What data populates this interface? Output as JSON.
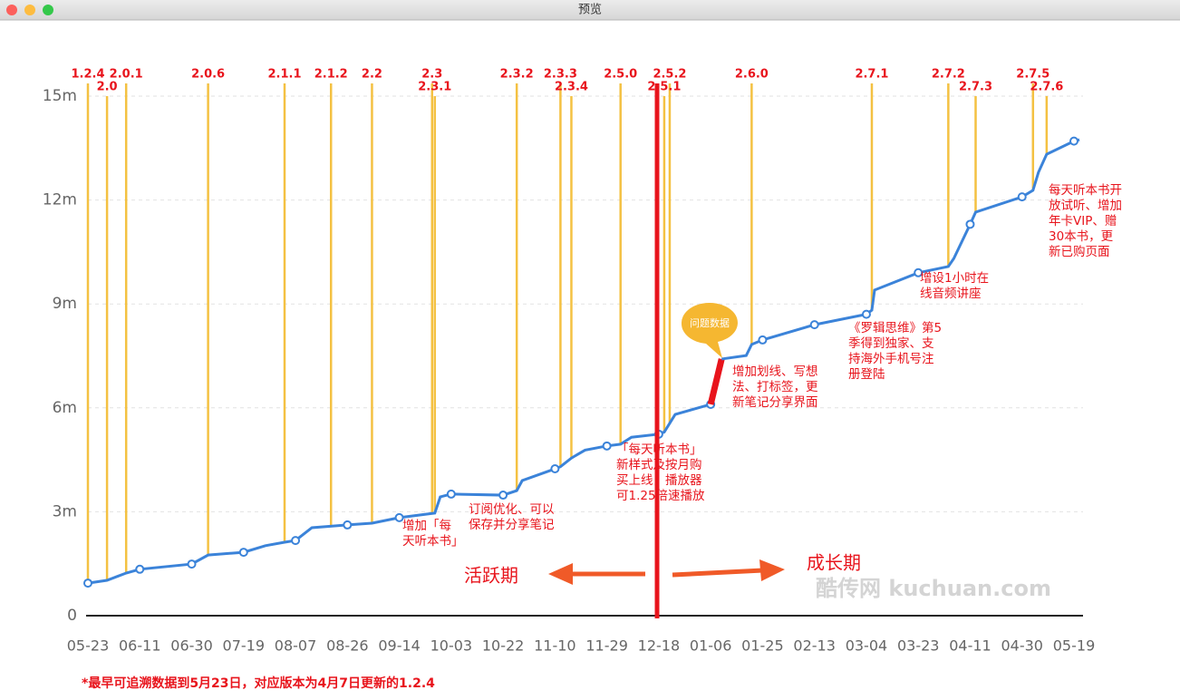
{
  "window": {
    "title": "预览"
  },
  "chart_data": {
    "type": "line",
    "categories": [
      "05-23",
      "06-11",
      "06-30",
      "07-19",
      "08-07",
      "08-26",
      "09-14",
      "10-03",
      "10-22",
      "11-10",
      "11-29",
      "12-18",
      "01-06",
      "01-25",
      "02-13",
      "03-04",
      "03-23",
      "04-11",
      "04-30",
      "05-19"
    ],
    "ylim": [
      0,
      15.4
    ],
    "yticks": [
      {
        "value": 15,
        "label": "15m"
      },
      {
        "value": 12,
        "label": "12m"
      },
      {
        "value": 9,
        "label": "9m"
      },
      {
        "value": 6,
        "label": "6m"
      },
      {
        "value": 3,
        "label": "3m"
      },
      0
    ],
    "grid": true,
    "series": [
      {
        "color": "#3b83d9",
        "x": [
          "05-23",
          "05-30",
          "06-06",
          "06-11",
          "06-30",
          "07-06",
          "07-19",
          "07-27",
          "08-03",
          "08-07",
          "08-13",
          "08-26",
          "09-04",
          "09-14",
          "09-27",
          "09-29",
          "10-03",
          "10-22",
          "10-27",
          "10-29",
          "11-10",
          "11-12",
          "11-16",
          "11-21",
          "11-29",
          "12-04",
          "12-08",
          "12-18",
          "12-20",
          "12-24",
          "01-06"
        ],
        "values": [
          0.94,
          1.02,
          1.23,
          1.34,
          1.49,
          1.75,
          1.83,
          2.02,
          2.12,
          2.17,
          2.54,
          2.62,
          2.67,
          2.83,
          2.96,
          3.43,
          3.51,
          3.48,
          3.61,
          3.9,
          4.24,
          4.3,
          4.55,
          4.78,
          4.9,
          4.95,
          5.15,
          5.24,
          5.3,
          5.81,
          6.1
        ]
      },
      {
        "name": "问题数据",
        "color": "#e8141c",
        "x": [
          "01-06",
          "01-10"
        ],
        "values": [
          6.1,
          7.41
        ]
      },
      {
        "color": "#3b83d9",
        "x": [
          "01-10",
          "01-19",
          "01-21",
          "01-25",
          "02-13",
          "03-04",
          "03-06",
          "03-07",
          "03-23",
          "04-03",
          "04-05",
          "04-11",
          "04-13",
          "04-30",
          "05-04",
          "05-06",
          "05-09",
          "05-19",
          "05-21"
        ],
        "values": [
          7.41,
          7.51,
          7.83,
          7.96,
          8.4,
          8.7,
          8.82,
          9.4,
          9.9,
          10.08,
          10.31,
          11.3,
          11.65,
          12.09,
          12.28,
          12.8,
          13.32,
          13.7,
          13.74
        ]
      }
    ],
    "versions": [
      {
        "label": "1.2.4",
        "date": "05-23"
      },
      {
        "label": "2.0",
        "date": "05-30"
      },
      {
        "label": "2.0.1",
        "date": "06-06"
      },
      {
        "label": "2.0.6",
        "date": "07-06"
      },
      {
        "label": "2.1.1",
        "date": "08-03"
      },
      {
        "label": "2.1.2",
        "date": "08-20"
      },
      {
        "label": "2.2",
        "date": "09-04"
      },
      {
        "label": "2.3",
        "date": "09-26"
      },
      {
        "label": "2.3.1",
        "date": "09-27"
      },
      {
        "label": "2.3.2",
        "date": "10-27"
      },
      {
        "label": "2.3.3",
        "date": "11-12"
      },
      {
        "label": "2.3.4",
        "date": "11-16"
      },
      {
        "label": "2.5.0",
        "date": "12-04"
      },
      {
        "label": "2.5.2",
        "date": "12-22"
      },
      {
        "label": "2.5.1",
        "date": "12-20"
      },
      {
        "label": "2.6.0",
        "date": "01-21"
      },
      {
        "label": "2.7.1",
        "date": "03-06"
      },
      {
        "label": "2.7.2",
        "date": "04-03"
      },
      {
        "label": "2.7.3",
        "date": "04-13"
      },
      {
        "label": "2.7.5",
        "date": "05-04"
      },
      {
        "label": "2.7.6",
        "date": "05-09"
      }
    ],
    "annotations": [
      {
        "lines": [
          "增加「每",
          "天听本书」"
        ]
      },
      {
        "lines": [
          "订阅优化、可以",
          "保存并分享笔记"
        ]
      },
      {
        "lines": [
          "「每天听本书」",
          "新样式及按月购",
          "买上线，播放器",
          "可1.25倍速播放"
        ]
      },
      {
        "lines": [
          "增加划线、写想",
          "法、打标签，更",
          "新笔记分享界面"
        ]
      },
      {
        "lines": [
          "《罗辑思维》第5",
          "季得到独家、支",
          "持海外手机号注",
          "册登陆"
        ]
      },
      {
        "lines": [
          "增设1小时在",
          "线音频讲座"
        ]
      },
      {
        "lines": [
          "每天听本书开",
          "放试听、增加",
          "年卡VIP、赠",
          "30本书，更",
          "新已购页面"
        ]
      }
    ],
    "periods": [
      "活跃期",
      "成长期"
    ],
    "watermark": "酷传网 kuchuan.com",
    "footnote": "*最早可追溯数据到5月23日，对应版本为4月7日更新的1.2.4"
  }
}
